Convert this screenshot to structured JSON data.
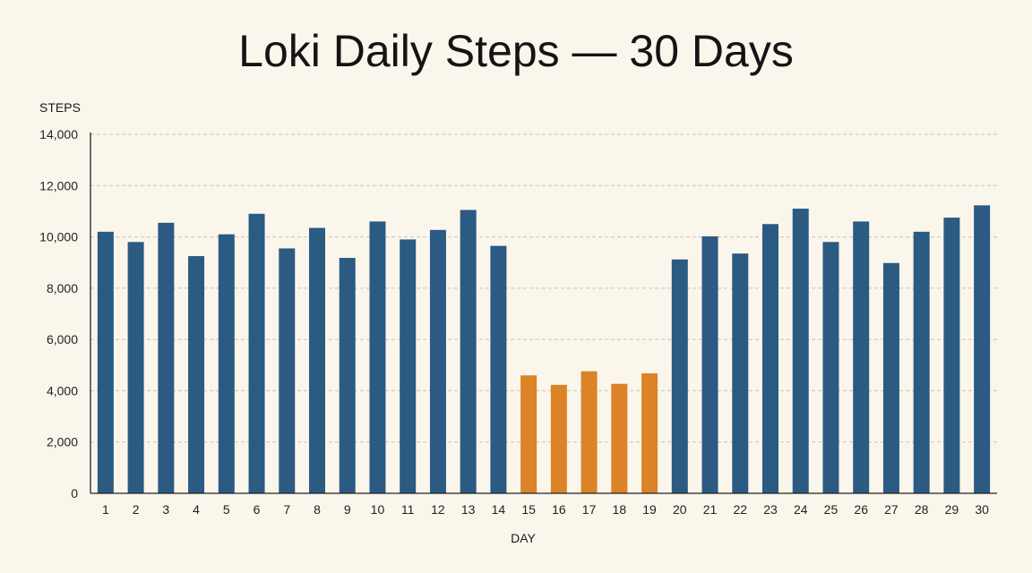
{
  "chart_data": {
    "type": "bar",
    "title": "Loki Daily Steps — 30 Days",
    "xlabel": "DAY",
    "ylabel": "STEPS",
    "ylim": [
      0,
      14000
    ],
    "yticks": [
      0,
      2000,
      4000,
      6000,
      8000,
      10000,
      12000,
      14000
    ],
    "ytick_labels": [
      "0",
      "2,000",
      "4,000",
      "6,000",
      "8,000",
      "10,000",
      "12,000",
      "14,000"
    ],
    "grid": "horizontal dashed",
    "categories": [
      "1",
      "2",
      "3",
      "4",
      "5",
      "6",
      "7",
      "8",
      "9",
      "10",
      "11",
      "12",
      "13",
      "14",
      "15",
      "16",
      "17",
      "18",
      "19",
      "20",
      "21",
      "22",
      "23",
      "24",
      "25",
      "26",
      "27",
      "28",
      "29",
      "30"
    ],
    "values": [
      10200,
      9800,
      10550,
      9250,
      10100,
      10900,
      9550,
      10350,
      9180,
      10600,
      9900,
      10270,
      11050,
      9650,
      4600,
      4230,
      4760,
      4270,
      4680,
      9120,
      10020,
      9350,
      10500,
      11100,
      9800,
      10600,
      8980,
      10200,
      10750,
      11230
    ],
    "highlight_days": [
      "15",
      "16",
      "17",
      "18",
      "19"
    ],
    "colors": {
      "normal": "#2b5a82",
      "highlight": "#dc8227",
      "grid": "#c9c4b8",
      "axis": "#222222",
      "background": "#fbf6ec"
    }
  }
}
